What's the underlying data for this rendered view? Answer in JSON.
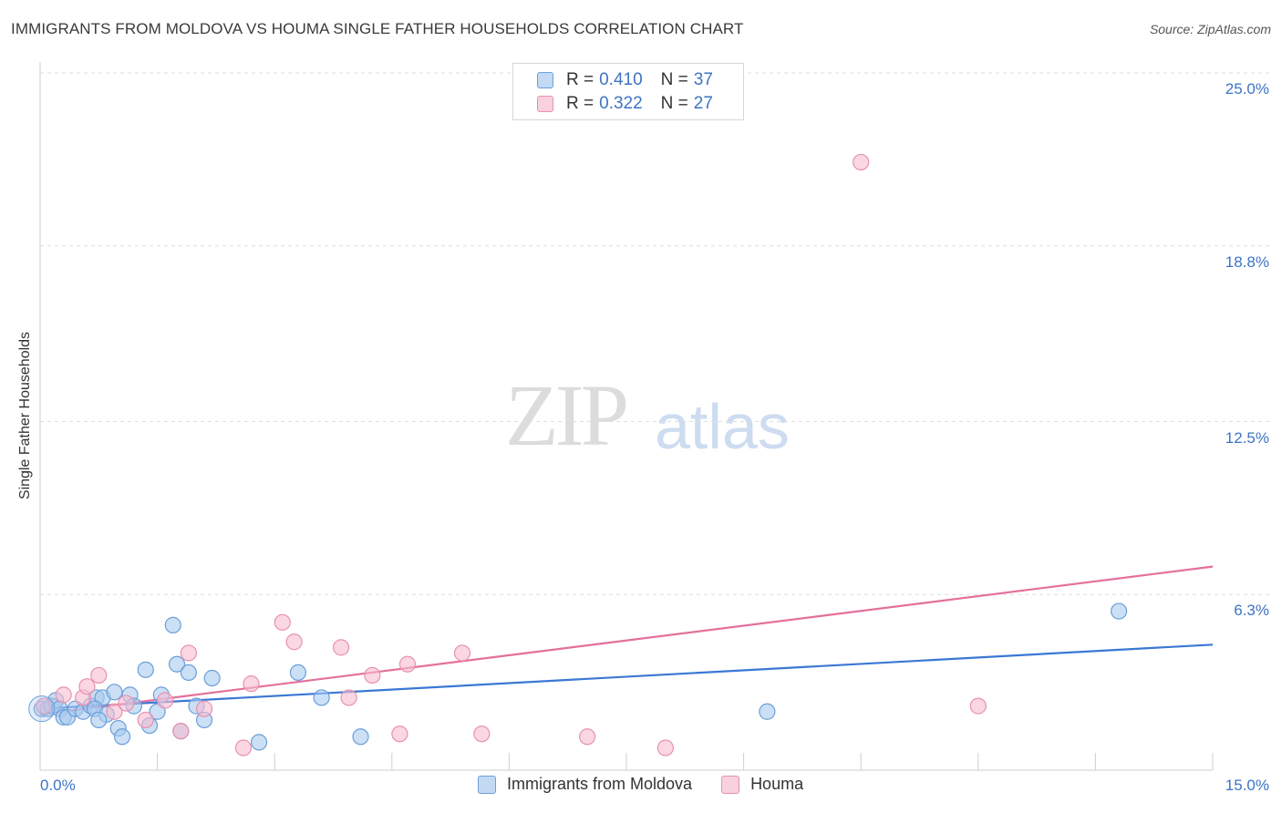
{
  "title": "IMMIGRANTS FROM MOLDOVA VS HOUMA SINGLE FATHER HOUSEHOLDS CORRELATION CHART",
  "source": "Source: ZipAtlas.com",
  "watermark": {
    "zip": "ZIP",
    "atlas": "atlas"
  },
  "legend_top": {
    "rows": [
      {
        "r_label": "R =",
        "r_value": "0.410",
        "n_label": "N =",
        "n_value": "37"
      },
      {
        "r_label": "R =",
        "r_value": "0.322",
        "n_label": "N =",
        "n_value": "27"
      }
    ]
  },
  "legend_bottom": [
    "Immigrants from Moldova",
    "Houma"
  ],
  "colors": {
    "blue_fill": "#a9c9ef",
    "blue_stroke": "#6b9fd8",
    "blue_line": "#3a78d4",
    "pink_fill": "#f6bdd0",
    "pink_stroke": "#e891b0",
    "pink_line": "#e46f9c",
    "tick_text": "#3d74c4"
  },
  "chart_data": {
    "type": "scatter",
    "title": "IMMIGRANTS FROM MOLDOVA VS HOUMA SINGLE FATHER HOUSEHOLDS CORRELATION CHART",
    "xlabel": "",
    "ylabel": "Single Father Households",
    "xlim": [
      0,
      15
    ],
    "ylim": [
      0,
      25.0
    ],
    "x_tick_labels": [
      "0.0%",
      "15.0%"
    ],
    "y_ticks": [
      6.3,
      12.5,
      18.8,
      25.0
    ],
    "y_tick_labels": [
      "6.3%",
      "12.5%",
      "18.8%",
      "25.0%"
    ],
    "grid": true,
    "legend_position": "top-center",
    "series": [
      {
        "name": "Immigrants from Moldova",
        "r": 0.41,
        "n": 37,
        "trend": {
          "x": [
            0,
            15
          ],
          "y": [
            2.2,
            4.5
          ]
        },
        "points": [
          [
            0.02,
            2.2
          ],
          [
            0.1,
            2.2
          ],
          [
            0.15,
            2.3
          ],
          [
            0.2,
            2.5
          ],
          [
            0.25,
            2.2
          ],
          [
            0.3,
            1.9
          ],
          [
            0.35,
            1.9
          ],
          [
            0.45,
            2.2
          ],
          [
            0.55,
            2.1
          ],
          [
            0.65,
            2.3
          ],
          [
            0.72,
            2.6
          ],
          [
            0.8,
            2.6
          ],
          [
            0.7,
            2.2
          ],
          [
            0.85,
            2.0
          ],
          [
            0.95,
            2.8
          ],
          [
            1.0,
            1.5
          ],
          [
            1.05,
            1.2
          ],
          [
            1.15,
            2.7
          ],
          [
            1.2,
            2.3
          ],
          [
            1.35,
            3.6
          ],
          [
            1.4,
            1.6
          ],
          [
            1.5,
            2.1
          ],
          [
            1.55,
            2.7
          ],
          [
            1.7,
            5.2
          ],
          [
            1.75,
            3.8
          ],
          [
            1.8,
            1.4
          ],
          [
            1.9,
            3.5
          ],
          [
            2.0,
            2.3
          ],
          [
            2.1,
            1.8
          ],
          [
            2.2,
            3.3
          ],
          [
            2.8,
            1.0
          ],
          [
            3.3,
            3.5
          ],
          [
            3.6,
            2.6
          ],
          [
            4.1,
            1.2
          ],
          [
            0.75,
            1.8
          ],
          [
            9.3,
            2.1
          ],
          [
            13.8,
            5.7
          ]
        ]
      },
      {
        "name": "Houma",
        "r": 0.322,
        "n": 27,
        "trend": {
          "x": [
            0,
            15
          ],
          "y": [
            2.0,
            7.3
          ]
        },
        "points": [
          [
            0.05,
            2.3
          ],
          [
            0.3,
            2.7
          ],
          [
            0.55,
            2.6
          ],
          [
            0.6,
            3.0
          ],
          [
            0.75,
            3.4
          ],
          [
            0.95,
            2.1
          ],
          [
            1.1,
            2.4
          ],
          [
            1.35,
            1.8
          ],
          [
            1.6,
            2.5
          ],
          [
            1.8,
            1.4
          ],
          [
            1.9,
            4.2
          ],
          [
            2.1,
            2.2
          ],
          [
            2.6,
            0.8
          ],
          [
            2.7,
            3.1
          ],
          [
            3.1,
            5.3
          ],
          [
            3.25,
            4.6
          ],
          [
            3.85,
            4.4
          ],
          [
            3.95,
            2.6
          ],
          [
            4.25,
            3.4
          ],
          [
            4.6,
            1.3
          ],
          [
            4.7,
            3.8
          ],
          [
            5.4,
            4.2
          ],
          [
            5.65,
            1.3
          ],
          [
            7.0,
            1.2
          ],
          [
            8.0,
            0.8
          ],
          [
            10.5,
            21.8
          ],
          [
            12.0,
            2.3
          ]
        ]
      }
    ]
  }
}
